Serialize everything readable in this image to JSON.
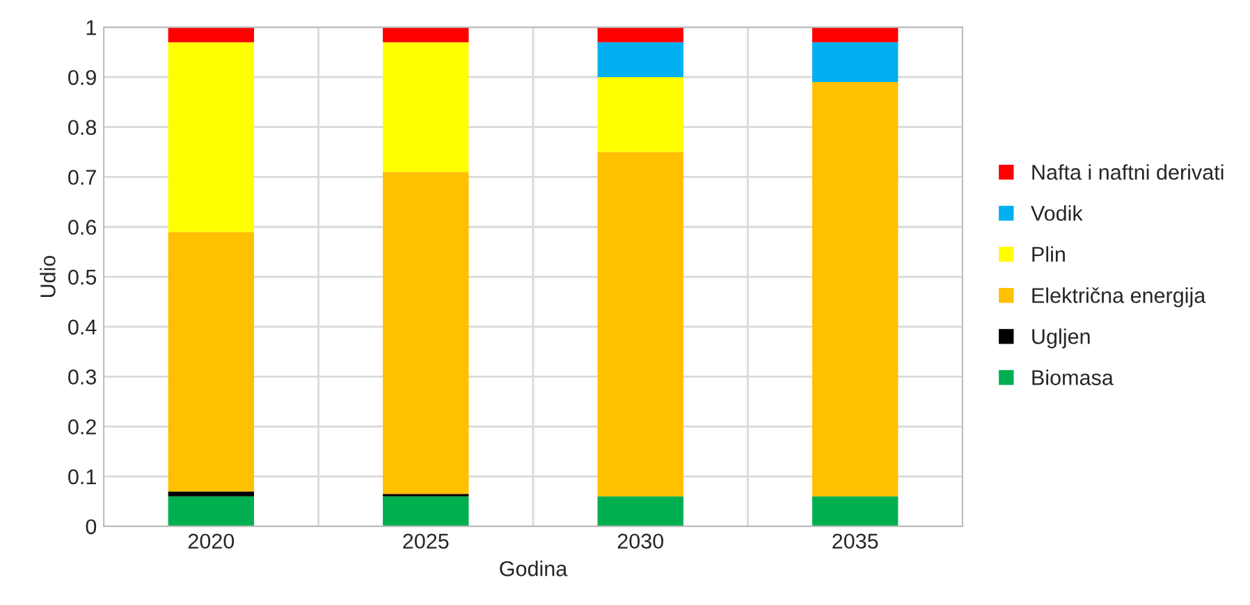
{
  "chart_data": {
    "type": "bar",
    "stacked": true,
    "xlabel": "Godina",
    "ylabel": "Udio",
    "categories": [
      "2020",
      "2025",
      "2030",
      "2035"
    ],
    "series": [
      {
        "name": "Biomasa",
        "color": "#00b050",
        "values": [
          0.06,
          0.06,
          0.06,
          0.06
        ]
      },
      {
        "name": "Ugljen",
        "color": "#000000",
        "values": [
          0.01,
          0.005,
          0,
          0
        ]
      },
      {
        "name": "Električna energija",
        "color": "#ffc000",
        "values": [
          0.52,
          0.645,
          0.69,
          0.83
        ]
      },
      {
        "name": "Plin",
        "color": "#ffff00",
        "values": [
          0.38,
          0.26,
          0.15,
          0
        ]
      },
      {
        "name": "Vodik",
        "color": "#00b0f0",
        "values": [
          0,
          0,
          0.07,
          0.08
        ]
      },
      {
        "name": "Nafta i naftni derivati",
        "color": "#ff0000",
        "values": [
          0.03,
          0.03,
          0.03,
          0.03
        ]
      }
    ],
    "ylim": [
      0,
      1
    ],
    "yticks": [
      0,
      0.1,
      0.2,
      0.3,
      0.4,
      0.5,
      0.6,
      0.7,
      0.8,
      0.9,
      1
    ],
    "grid": true,
    "legend": "right"
  }
}
